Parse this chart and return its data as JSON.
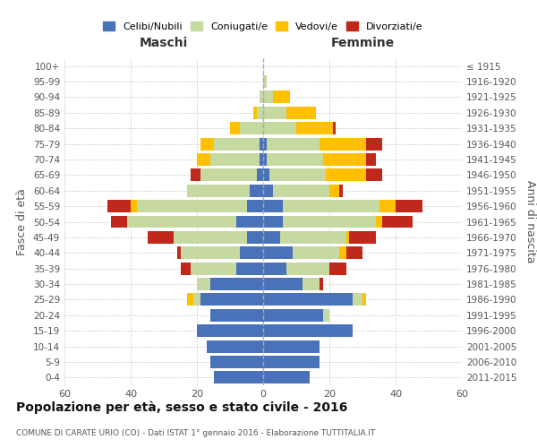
{
  "age_groups": [
    "0-4",
    "5-9",
    "10-14",
    "15-19",
    "20-24",
    "25-29",
    "30-34",
    "35-39",
    "40-44",
    "45-49",
    "50-54",
    "55-59",
    "60-64",
    "65-69",
    "70-74",
    "75-79",
    "80-84",
    "85-89",
    "90-94",
    "95-99",
    "100+"
  ],
  "birth_years": [
    "2011-2015",
    "2006-2010",
    "2001-2005",
    "1996-2000",
    "1991-1995",
    "1986-1990",
    "1981-1985",
    "1976-1980",
    "1971-1975",
    "1966-1970",
    "1961-1965",
    "1956-1960",
    "1951-1955",
    "1946-1950",
    "1941-1945",
    "1936-1940",
    "1931-1935",
    "1926-1930",
    "1921-1925",
    "1916-1920",
    "≤ 1915"
  ],
  "male": {
    "celibi": [
      15,
      16,
      17,
      20,
      16,
      19,
      16,
      8,
      7,
      5,
      8,
      5,
      4,
      2,
      1,
      1,
      0,
      0,
      0,
      0,
      0
    ],
    "coniugati": [
      0,
      0,
      0,
      0,
      0,
      2,
      4,
      14,
      18,
      22,
      33,
      33,
      19,
      17,
      15,
      14,
      7,
      2,
      1,
      0,
      0
    ],
    "vedovi": [
      0,
      0,
      0,
      0,
      0,
      2,
      0,
      0,
      0,
      0,
      0,
      2,
      0,
      0,
      4,
      4,
      3,
      1,
      0,
      0,
      0
    ],
    "divorziati": [
      0,
      0,
      0,
      0,
      0,
      0,
      0,
      3,
      1,
      8,
      5,
      7,
      0,
      3,
      0,
      0,
      0,
      0,
      0,
      0,
      0
    ]
  },
  "female": {
    "nubili": [
      14,
      17,
      17,
      27,
      18,
      27,
      12,
      7,
      9,
      5,
      6,
      6,
      3,
      2,
      1,
      1,
      0,
      0,
      0,
      0,
      0
    ],
    "coniugate": [
      0,
      0,
      0,
      0,
      2,
      3,
      5,
      13,
      14,
      20,
      28,
      29,
      17,
      17,
      17,
      16,
      10,
      7,
      3,
      1,
      0
    ],
    "vedove": [
      0,
      0,
      0,
      0,
      0,
      1,
      0,
      0,
      2,
      1,
      2,
      5,
      3,
      12,
      13,
      14,
      11,
      9,
      5,
      0,
      0
    ],
    "divorziate": [
      0,
      0,
      0,
      0,
      0,
      0,
      1,
      5,
      5,
      8,
      9,
      8,
      1,
      5,
      3,
      5,
      1,
      0,
      0,
      0,
      0
    ]
  },
  "colors": {
    "celibi_nubili": "#4a72b8",
    "coniugati": "#c5d9a0",
    "vedovi": "#ffc000",
    "divorziati": "#c0281b"
  },
  "xlim": 60,
  "title": "Popolazione per età, sesso e stato civile - 2016",
  "subtitle": "COMUNE DI CARATE URIO (CO) - Dati ISTAT 1° gennaio 2016 - Elaborazione TUTTITALIA.IT",
  "ylabel_left": "Fasce di età",
  "ylabel_right": "Anni di nascita",
  "xlabel_maschi": "Maschi",
  "xlabel_femmine": "Femmine",
  "legend_labels": [
    "Celibi/Nubili",
    "Coniugati/e",
    "Vedovi/e",
    "Divorziati/e"
  ],
  "background_color": "#ffffff",
  "grid_color": "#cccccc"
}
